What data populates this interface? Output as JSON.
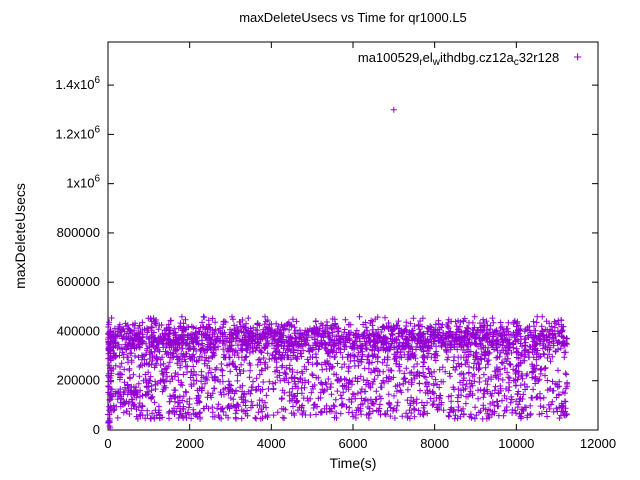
{
  "chart_data": {
    "type": "scatter",
    "title": "maxDeleteUsecs vs Time for qr1000.L5",
    "xlabel": "Time(s)",
    "ylabel": "maxDeleteUsecs",
    "xlim": [
      0,
      12000
    ],
    "ylim": [
      0,
      1575000
    ],
    "grid": false,
    "legend_position": "top-right-inside",
    "x_ticks": [
      {
        "v": 0,
        "label": "0"
      },
      {
        "v": 2000,
        "label": "2000"
      },
      {
        "v": 4000,
        "label": "4000"
      },
      {
        "v": 6000,
        "label": "6000"
      },
      {
        "v": 8000,
        "label": "8000"
      },
      {
        "v": 10000,
        "label": "10000"
      },
      {
        "v": 12000,
        "label": "12000"
      }
    ],
    "y_ticks": [
      {
        "v": 0,
        "label": "0"
      },
      {
        "v": 200000,
        "label": "200000"
      },
      {
        "v": 400000,
        "label": "400000"
      },
      {
        "v": 600000,
        "label": "600000"
      },
      {
        "v": 800000,
        "label": "800000"
      },
      {
        "v": 1000000,
        "label": "1x10",
        "sup": "6"
      },
      {
        "v": 1200000,
        "label": "1.2x10",
        "sup": "6"
      },
      {
        "v": 1400000,
        "label": "1.4x10",
        "sup": "6"
      }
    ],
    "series": [
      {
        "name": "ma100529_rel_withdbg.cz12a_c32r128",
        "legend_segments": [
          {
            "t": "ma100529"
          },
          {
            "t": "r",
            "sub": true
          },
          {
            "t": "el"
          },
          {
            "t": "w",
            "sub": true
          },
          {
            "t": "ithdbg.cz12a"
          },
          {
            "t": "c",
            "sub": true
          },
          {
            "t": "32r128"
          }
        ],
        "marker": "plus",
        "color": "#9400d3",
        "outliers": [
          [
            7000,
            1300000
          ]
        ],
        "point_cloud_spec": {
          "seed": 1337,
          "n": 3200,
          "x_range": [
            0,
            11250
          ],
          "bands": [
            {
              "weight": 0.58,
              "mode": "gauss",
              "mean": 370000,
              "sd": 38000,
              "min": 295000,
              "max": 460000
            },
            {
              "weight": 0.42,
              "mode": "uniform",
              "min": 45000,
              "max": 305000
            }
          ],
          "edge_cluster": {
            "n": 70,
            "x_min": 0,
            "x_max": 80,
            "y_min": 8000,
            "y_max": 430000
          }
        }
      }
    ]
  }
}
